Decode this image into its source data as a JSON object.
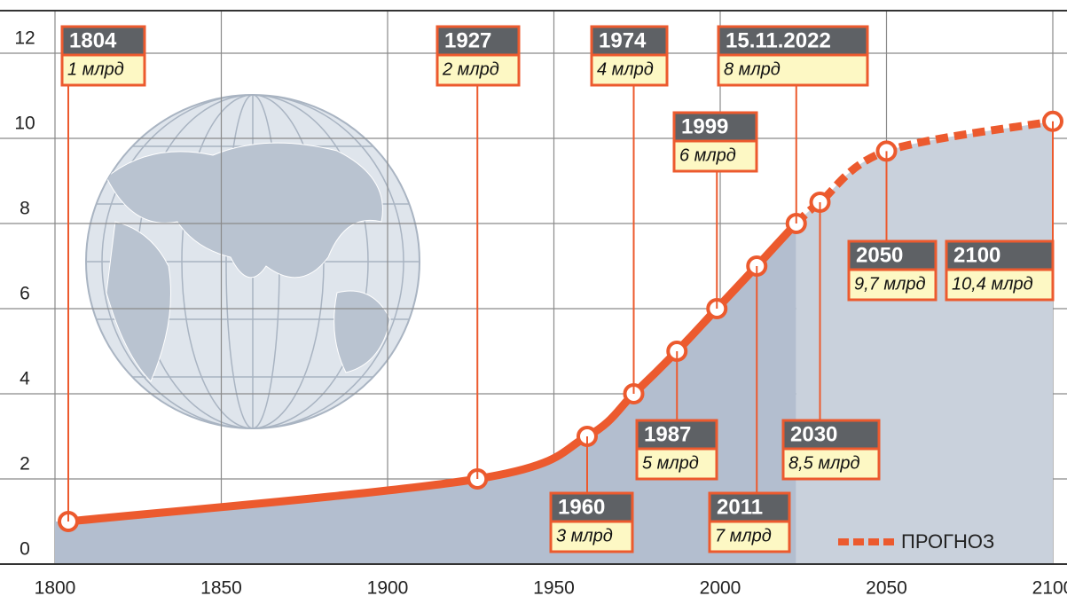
{
  "chart_data": {
    "type": "line",
    "xlim": [
      1800,
      2100
    ],
    "xticks": [
      1800,
      1850,
      1900,
      1950,
      2000,
      2050,
      2100
    ],
    "ylim": [
      0,
      13
    ],
    "yticks": [
      0,
      2,
      4,
      6,
      8,
      10,
      12
    ],
    "grid": true,
    "series": [
      {
        "color": "#ec5a2e",
        "fill": "#b3becf",
        "x": [
          1804,
          1927,
          1960,
          1974,
          1987,
          1999,
          2011,
          2022.87
        ],
        "values": [
          1,
          2,
          3,
          4,
          5,
          6,
          7,
          8
        ],
        "labels": [
          "1804",
          "1927",
          "1960",
          "1974",
          "1987",
          "1999",
          "2011",
          "15.11.2022"
        ],
        "value_labels": [
          "1 млрд",
          "2 млрд",
          "3 млрд",
          "4 млрд",
          "5 млрд",
          "6 млрд",
          "7 млрд",
          "8 млрд"
        ]
      },
      {
        "name": "ПРОГНОЗ",
        "color": "#ec5a2e",
        "fill": "#c9d1dc",
        "dashed": true,
        "x": [
          2030,
          2050,
          2100
        ],
        "values": [
          8.5,
          9.7,
          10.4
        ],
        "labels": [
          "2030",
          "2050",
          "2100"
        ],
        "value_labels": [
          "8,5 млрд",
          "9,7 млрд",
          "10,4 млрд"
        ]
      }
    ]
  }
}
